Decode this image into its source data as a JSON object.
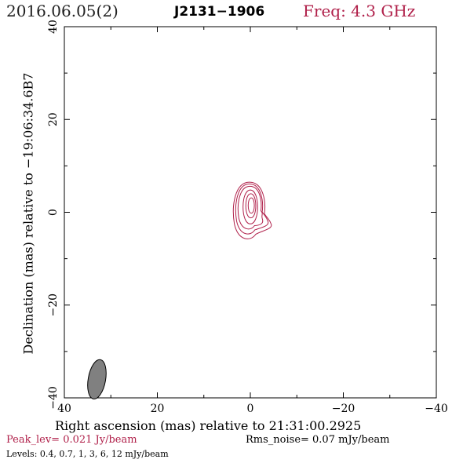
{
  "header": {
    "date": "2016.06.05(2)",
    "source": "J2131−1906",
    "frequency": "Freq: 4.3 GHz"
  },
  "footer": {
    "peak": "Peak_lev=  0.021 Jy/beam",
    "rms": "Rms_noise= 0.07 mJy/beam",
    "levels": "Levels: 0.4, 0.7,   1,   3,   6,  12 mJy/beam"
  },
  "colors": {
    "contour": "#b0204a",
    "beam": "#808080",
    "peak_text": "#b0204a"
  },
  "chart_data": {
    "type": "contour",
    "xlabel": "Right ascension (mas) relative to 21:31:00.2925",
    "ylabel": "Declination (mas) relative to −19:06:34.6B7",
    "xlim": [
      40,
      -40
    ],
    "ylim": [
      -40,
      40
    ],
    "xticks": [
      40,
      20,
      0,
      -20,
      -40
    ],
    "yticks": [
      -40,
      -20,
      0,
      20,
      40
    ],
    "xtick_labels": [
      "40",
      "20",
      "0",
      "−20",
      "−40"
    ],
    "ytick_labels": [
      "−40",
      "−20",
      "0",
      "20",
      "40"
    ],
    "contour_levels_mJy": [
      0.4,
      0.7,
      1,
      3,
      6,
      12
    ],
    "contours": [
      {
        "level": 0.4,
        "center": [
          0.2,
          0.3
        ],
        "rx": 3.4,
        "ry_top": 6.2,
        "ry_bottom": 6.3,
        "tail": [
          -4.5,
          -2.6
        ]
      },
      {
        "level": 0.7,
        "center": [
          0.2,
          0.6
        ],
        "rx": 2.9,
        "ry_top": 5.5,
        "ry_bottom": 5.5,
        "tail": [
          -3.8,
          -2.0
        ]
      },
      {
        "level": 1,
        "center": [
          0.1,
          0.8
        ],
        "rx": 2.5,
        "ry_top": 4.8,
        "ry_bottom": 4.6,
        "tail": [
          -2.6,
          -1.5
        ]
      },
      {
        "level": 3,
        "center": [
          0.0,
          1.0
        ],
        "rx": 1.9,
        "ry_top": 3.8,
        "ry_bottom": 3.5,
        "tail": null
      },
      {
        "level": 6,
        "center": [
          -0.1,
          1.2
        ],
        "rx": 1.3,
        "ry_top": 2.8,
        "ry_bottom": 2.4,
        "tail": null
      },
      {
        "level": 12,
        "center": [
          -0.2,
          1.3
        ],
        "rx": 0.8,
        "ry_top": 1.8,
        "ry_bottom": 1.5,
        "tail": null
      }
    ],
    "beam": {
      "center": [
        33.0,
        -36.0
      ],
      "major_mas": 5.2,
      "minor_mas": 1.7,
      "pa_deg": 10
    }
  }
}
